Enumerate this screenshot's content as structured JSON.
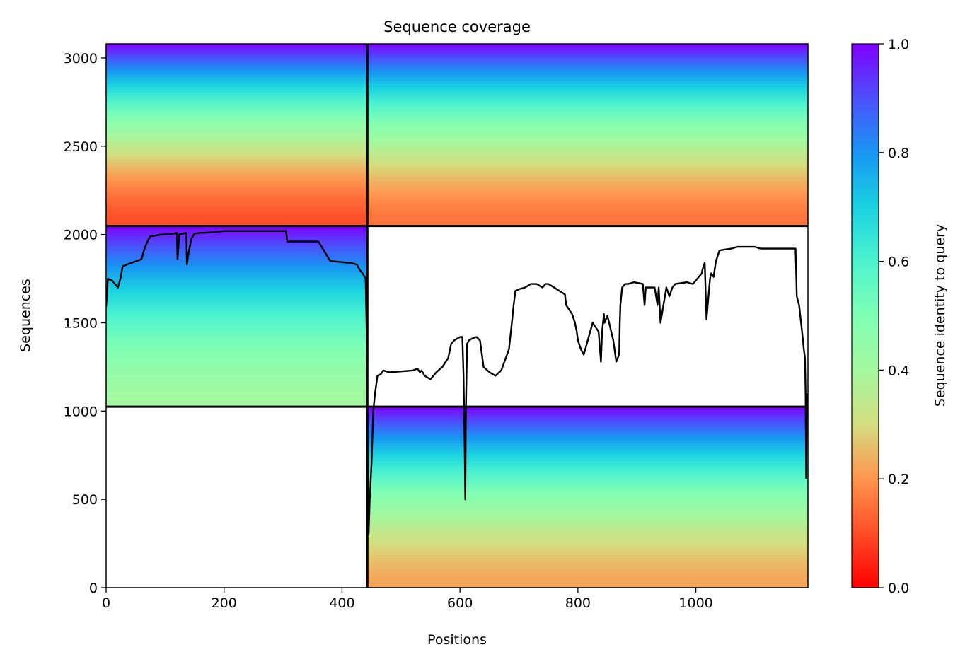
{
  "chart_data": {
    "type": "heatmap",
    "title": "Sequence coverage",
    "xlabel": "Positions",
    "ylabel": "Sequences",
    "xlim": [
      0,
      1190
    ],
    "ylim": [
      0,
      3080
    ],
    "x_ticks": [
      0,
      200,
      400,
      600,
      800,
      1000
    ],
    "y_ticks": [
      0,
      500,
      1000,
      1500,
      2000,
      2500,
      3000
    ],
    "colorbar": {
      "label": "Sequence identity to query",
      "range": [
        0.0,
        1.0
      ],
      "ticks": [
        "0.0",
        "0.2",
        "0.4",
        "0.6",
        "0.8",
        "1.0"
      ],
      "colormap": "rainbow_r"
    },
    "blocks": [
      {
        "x": [
          0,
          443
        ],
        "y": [
          2048,
          3080
        ],
        "identity_bottom": 0.1,
        "identity_top": 1.0
      },
      {
        "x": [
          443,
          1190
        ],
        "y": [
          2048,
          3080
        ],
        "identity_bottom": 0.15,
        "identity_top": 1.0
      },
      {
        "x": [
          0,
          443
        ],
        "y": [
          1025,
          2048
        ],
        "identity_bottom": 0.4,
        "identity_top": 1.0
      },
      {
        "x": [
          443,
          1190
        ],
        "y": [
          0,
          1025
        ],
        "identity_bottom": 0.22,
        "identity_top": 1.0
      }
    ],
    "block_boundaries": {
      "x": [
        443
      ],
      "y": [
        1025,
        2048
      ]
    },
    "coverage_line": {
      "color": "#000000",
      "x": [
        0,
        3,
        10,
        15,
        20,
        25,
        28,
        35,
        60,
        65,
        70,
        75,
        85,
        95,
        105,
        115,
        120,
        121,
        124,
        130,
        136,
        137,
        140,
        145,
        150,
        160,
        170,
        200,
        250,
        300,
        305,
        307,
        360,
        380,
        410,
        415,
        425,
        430,
        435,
        440,
        442,
        443,
        445,
        447,
        450,
        453,
        456,
        460,
        466,
        470,
        480,
        520,
        528,
        532,
        535,
        540,
        550,
        560,
        570,
        580,
        585,
        590,
        595,
        600,
        604,
        606,
        608,
        609,
        610,
        612,
        615,
        620,
        628,
        634,
        640,
        650,
        660,
        670,
        683,
        688,
        691,
        694,
        700,
        710,
        720,
        730,
        740,
        745,
        750,
        760,
        778,
        780,
        790,
        795,
        798,
        800,
        805,
        810,
        815,
        825,
        835,
        839,
        841,
        844,
        845,
        850,
        860,
        865,
        870,
        871,
        872,
        875,
        880,
        885,
        895,
        910,
        913,
        915,
        930,
        935,
        937,
        940,
        950,
        955,
        960,
        965,
        985,
        995,
        1010,
        1011,
        1015,
        1018,
        1024,
        1026,
        1030,
        1034,
        1037,
        1040,
        1060,
        1070,
        1080,
        1100,
        1110,
        1160,
        1165,
        1169,
        1170,
        1171,
        1175,
        1180,
        1183,
        1185,
        1186,
        1187,
        1188
      ],
      "y": [
        1590,
        1750,
        1740,
        1720,
        1700,
        1760,
        1820,
        1830,
        1860,
        1920,
        1960,
        1990,
        1995,
        2000,
        2000,
        2005,
        2010,
        1860,
        2000,
        2005,
        2010,
        1830,
        1900,
        1980,
        2005,
        2010,
        2010,
        2020,
        2020,
        2020,
        2020,
        1960,
        1960,
        1850,
        1840,
        1840,
        1830,
        1800,
        1780,
        1750,
        1400,
        900,
        300,
        500,
        700,
        1000,
        1100,
        1200,
        1210,
        1230,
        1220,
        1230,
        1240,
        1220,
        1230,
        1200,
        1180,
        1220,
        1250,
        1300,
        1380,
        1400,
        1410,
        1420,
        1420,
        1200,
        800,
        500,
        1000,
        1380,
        1400,
        1410,
        1420,
        1400,
        1250,
        1220,
        1200,
        1230,
        1350,
        1500,
        1600,
        1680,
        1690,
        1700,
        1720,
        1720,
        1700,
        1720,
        1720,
        1700,
        1660,
        1600,
        1550,
        1500,
        1450,
        1400,
        1350,
        1320,
        1380,
        1500,
        1450,
        1280,
        1450,
        1550,
        1500,
        1540,
        1400,
        1280,
        1320,
        1500,
        1600,
        1700,
        1720,
        1720,
        1730,
        1720,
        1600,
        1700,
        1700,
        1600,
        1700,
        1500,
        1700,
        1650,
        1700,
        1720,
        1730,
        1720,
        1780,
        1800,
        1840,
        1520,
        1750,
        1780,
        1760,
        1850,
        1880,
        1910,
        1920,
        1930,
        1930,
        1930,
        1920,
        1920,
        1920,
        1920,
        1800,
        1650,
        1600,
        1450,
        1350,
        1300,
        1100,
        620,
        1100
      ]
    }
  }
}
